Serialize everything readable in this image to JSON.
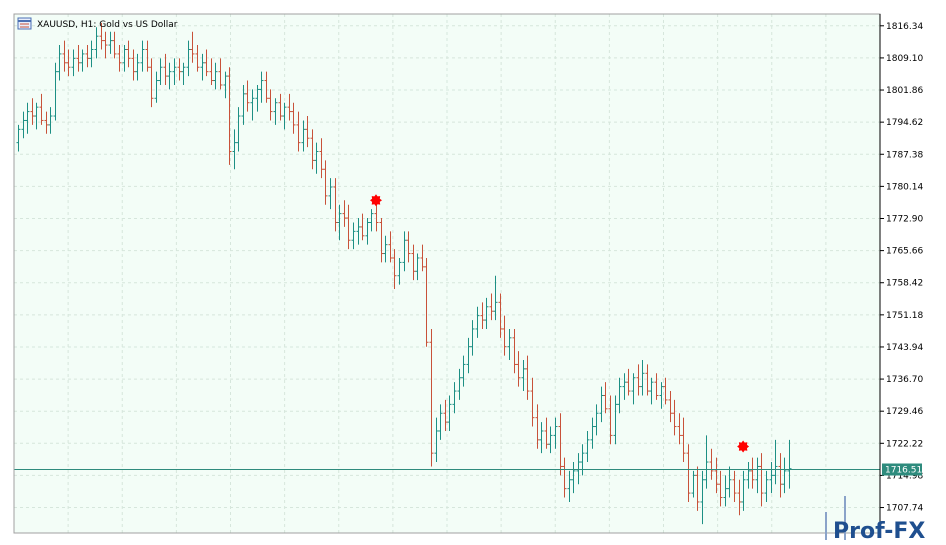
{
  "window": {
    "symbol_title": "XAUUSD, H1:  Gold vs US Dollar"
  },
  "chart_data": {
    "type": "ohlc",
    "title": "XAUUSD, H1:  Gold vs US Dollar",
    "ylim": [
      1702.0,
      1819.0
    ],
    "y_ticks": [
      "1816.34",
      "1809.10",
      "1801.86",
      "1794.62",
      "1787.38",
      "1780.14",
      "1772.90",
      "1765.66",
      "1758.42",
      "1751.18",
      "1743.94",
      "1736.70",
      "1729.46",
      "1722.22",
      "1714.98",
      "1707.74"
    ],
    "y_tick_values": [
      1816.34,
      1809.1,
      1801.86,
      1794.62,
      1787.38,
      1780.14,
      1772.9,
      1765.66,
      1758.42,
      1751.18,
      1743.94,
      1736.7,
      1729.46,
      1722.22,
      1714.98,
      1707.74
    ],
    "grid": true,
    "current_price": {
      "value": 1716.51,
      "label": "1716.51"
    },
    "markers": [
      {
        "bar_index": 78,
        "price": 1777.0
      },
      {
        "bar_index": 158,
        "price": 1721.5
      }
    ],
    "bars": [
      [
        1790.0,
        1794.0,
        1788.0,
        1793.0
      ],
      [
        1793.0,
        1797.0,
        1791.0,
        1795.0
      ],
      [
        1795.0,
        1799.0,
        1792.0,
        1797.0
      ],
      [
        1797.0,
        1800.0,
        1794.0,
        1796.0
      ],
      [
        1796.0,
        1799.0,
        1793.0,
        1798.0
      ],
      [
        1798.0,
        1801.0,
        1794.0,
        1795.0
      ],
      [
        1795.0,
        1797.0,
        1792.0,
        1794.0
      ],
      [
        1794.0,
        1798.0,
        1792.0,
        1796.0
      ],
      [
        1796.0,
        1808.0,
        1795.0,
        1806.0
      ],
      [
        1806.0,
        1812.0,
        1804.0,
        1810.0
      ],
      [
        1810.0,
        1813.0,
        1806.0,
        1808.0
      ],
      [
        1808.0,
        1811.0,
        1805.0,
        1807.0
      ],
      [
        1807.0,
        1811.0,
        1805.0,
        1809.0
      ],
      [
        1809.0,
        1812.0,
        1806.0,
        1808.0
      ],
      [
        1808.0,
        1811.0,
        1806.0,
        1810.0
      ],
      [
        1810.0,
        1812.0,
        1807.0,
        1809.0
      ],
      [
        1809.0,
        1813.0,
        1807.0,
        1811.0
      ],
      [
        1811.0,
        1816.0,
        1809.0,
        1814.0
      ],
      [
        1814.0,
        1817.0,
        1811.0,
        1813.0
      ],
      [
        1813.0,
        1815.0,
        1809.0,
        1812.0
      ],
      [
        1812.0,
        1815.0,
        1810.0,
        1813.0
      ],
      [
        1813.0,
        1815.0,
        1809.0,
        1810.0
      ],
      [
        1810.0,
        1812.0,
        1806.0,
        1808.0
      ],
      [
        1808.0,
        1812.0,
        1806.0,
        1811.0
      ],
      [
        1811.0,
        1813.0,
        1807.0,
        1809.0
      ],
      [
        1809.0,
        1811.0,
        1804.0,
        1806.0
      ],
      [
        1806.0,
        1810.0,
        1804.0,
        1808.0
      ],
      [
        1808.0,
        1813.0,
        1806.0,
        1811.0
      ],
      [
        1811.0,
        1813.0,
        1806.0,
        1807.0
      ],
      [
        1807.0,
        1809.0,
        1798.0,
        1800.0
      ],
      [
        1800.0,
        1806.0,
        1799.0,
        1804.0
      ],
      [
        1804.0,
        1809.0,
        1803.0,
        1807.0
      ],
      [
        1807.0,
        1810.0,
        1803.0,
        1805.0
      ],
      [
        1805.0,
        1808.0,
        1802.0,
        1806.0
      ],
      [
        1806.0,
        1809.0,
        1803.0,
        1807.0
      ],
      [
        1807.0,
        1809.0,
        1804.0,
        1806.0
      ],
      [
        1806.0,
        1808.0,
        1803.0,
        1807.0
      ],
      [
        1807.0,
        1813.0,
        1805.0,
        1811.0
      ],
      [
        1811.0,
        1815.0,
        1808.0,
        1810.0
      ],
      [
        1810.0,
        1812.0,
        1806.0,
        1807.0
      ],
      [
        1807.0,
        1810.0,
        1804.0,
        1808.0
      ],
      [
        1808.0,
        1811.0,
        1805.0,
        1806.0
      ],
      [
        1806.0,
        1809.0,
        1803.0,
        1804.0
      ],
      [
        1804.0,
        1808.0,
        1802.0,
        1806.0
      ],
      [
        1806.0,
        1809.0,
        1802.0,
        1803.0
      ],
      [
        1803.0,
        1806.0,
        1800.0,
        1805.0
      ],
      [
        1805.0,
        1807.0,
        1785.0,
        1788.0
      ],
      [
        1788.0,
        1793.0,
        1784.0,
        1790.0
      ],
      [
        1790.0,
        1798.0,
        1788.0,
        1796.0
      ],
      [
        1796.0,
        1803.0,
        1794.0,
        1801.0
      ],
      [
        1801.0,
        1804.0,
        1797.0,
        1799.0
      ],
      [
        1799.0,
        1802.0,
        1795.0,
        1800.0
      ],
      [
        1800.0,
        1803.0,
        1797.0,
        1802.0
      ],
      [
        1802.0,
        1806.0,
        1799.0,
        1804.0
      ],
      [
        1804.0,
        1806.0,
        1799.0,
        1800.0
      ],
      [
        1800.0,
        1802.0,
        1795.0,
        1797.0
      ],
      [
        1797.0,
        1800.0,
        1794.0,
        1799.0
      ],
      [
        1799.0,
        1801.0,
        1795.0,
        1796.0
      ],
      [
        1796.0,
        1799.0,
        1793.0,
        1798.0
      ],
      [
        1798.0,
        1801.0,
        1795.0,
        1797.0
      ],
      [
        1797.0,
        1799.0,
        1792.0,
        1794.0
      ],
      [
        1794.0,
        1797.0,
        1788.0,
        1790.0
      ],
      [
        1790.0,
        1795.0,
        1788.0,
        1793.0
      ],
      [
        1793.0,
        1796.0,
        1789.0,
        1791.0
      ],
      [
        1791.0,
        1793.0,
        1784.0,
        1786.0
      ],
      [
        1786.0,
        1790.0,
        1783.0,
        1788.0
      ],
      [
        1788.0,
        1791.0,
        1782.0,
        1784.0
      ],
      [
        1784.0,
        1786.0,
        1776.0,
        1778.0
      ],
      [
        1778.0,
        1782.0,
        1775.0,
        1780.0
      ],
      [
        1780.0,
        1782.0,
        1770.0,
        1772.0
      ],
      [
        1772.0,
        1776.0,
        1768.0,
        1774.0
      ],
      [
        1774.0,
        1777.0,
        1771.0,
        1773.0
      ],
      [
        1773.0,
        1776.0,
        1766.0,
        1768.0
      ],
      [
        1768.0,
        1772.0,
        1766.0,
        1770.0
      ],
      [
        1770.0,
        1773.0,
        1767.0,
        1771.0
      ],
      [
        1771.0,
        1774.0,
        1768.0,
        1769.0
      ],
      [
        1769.0,
        1773.0,
        1767.0,
        1772.0
      ],
      [
        1772.0,
        1775.0,
        1770.0,
        1774.0
      ],
      [
        1774.0,
        1776.0,
        1770.0,
        1772.0
      ],
      [
        1772.0,
        1773.0,
        1763.0,
        1765.0
      ],
      [
        1765.0,
        1769.0,
        1763.0,
        1767.0
      ],
      [
        1767.0,
        1770.0,
        1763.0,
        1764.0
      ],
      [
        1764.0,
        1766.0,
        1757.0,
        1760.0
      ],
      [
        1760.0,
        1764.0,
        1758.0,
        1763.0
      ],
      [
        1763.0,
        1770.0,
        1761.0,
        1768.0
      ],
      [
        1768.0,
        1770.0,
        1763.0,
        1765.0
      ],
      [
        1765.0,
        1767.0,
        1759.0,
        1761.0
      ],
      [
        1761.0,
        1765.0,
        1759.0,
        1764.0
      ],
      [
        1764.0,
        1767.0,
        1761.0,
        1762.0
      ],
      [
        1762.0,
        1764.0,
        1744.0,
        1745.0
      ],
      [
        1745.0,
        1748.0,
        1717.0,
        1720.0
      ],
      [
        1720.0,
        1728.0,
        1718.0,
        1725.0
      ],
      [
        1725.0,
        1731.0,
        1723.0,
        1729.0
      ],
      [
        1729.0,
        1732.0,
        1725.0,
        1727.0
      ],
      [
        1727.0,
        1733.0,
        1725.0,
        1731.0
      ],
      [
        1731.0,
        1736.0,
        1729.0,
        1734.0
      ],
      [
        1734.0,
        1739.0,
        1732.0,
        1737.0
      ],
      [
        1737.0,
        1742.0,
        1735.0,
        1740.0
      ],
      [
        1740.0,
        1746.0,
        1738.0,
        1744.0
      ],
      [
        1744.0,
        1750.0,
        1742.0,
        1748.0
      ],
      [
        1748.0,
        1753.0,
        1746.0,
        1751.0
      ],
      [
        1751.0,
        1754.0,
        1748.0,
        1750.0
      ],
      [
        1750.0,
        1755.0,
        1748.0,
        1753.0
      ],
      [
        1753.0,
        1756.0,
        1750.0,
        1752.0
      ],
      [
        1752.0,
        1760.0,
        1750.0,
        1754.0
      ],
      [
        1754.0,
        1756.0,
        1746.0,
        1748.0
      ],
      [
        1748.0,
        1751.0,
        1742.0,
        1744.0
      ],
      [
        1744.0,
        1748.0,
        1741.0,
        1746.0
      ],
      [
        1746.0,
        1748.0,
        1738.0,
        1740.0
      ],
      [
        1740.0,
        1743.0,
        1735.0,
        1737.0
      ],
      [
        1737.0,
        1741.0,
        1734.0,
        1739.0
      ],
      [
        1739.0,
        1742.0,
        1732.0,
        1734.0
      ],
      [
        1734.0,
        1737.0,
        1726.0,
        1728.0
      ],
      [
        1728.0,
        1731.0,
        1721.0,
        1723.0
      ],
      [
        1723.0,
        1727.0,
        1720.0,
        1725.0
      ],
      [
        1725.0,
        1728.0,
        1721.0,
        1722.0
      ],
      [
        1722.0,
        1726.0,
        1720.0,
        1724.0
      ],
      [
        1724.0,
        1728.0,
        1721.0,
        1726.0
      ],
      [
        1726.0,
        1729.0,
        1715.0,
        1717.0
      ],
      [
        1717.0,
        1719.0,
        1710.0,
        1712.0
      ],
      [
        1712.0,
        1716.0,
        1709.0,
        1714.0
      ],
      [
        1714.0,
        1718.0,
        1711.0,
        1716.0
      ],
      [
        1716.0,
        1720.0,
        1713.0,
        1718.0
      ],
      [
        1718.0,
        1722.0,
        1715.0,
        1720.0
      ],
      [
        1720.0,
        1725.0,
        1718.0,
        1723.0
      ],
      [
        1723.0,
        1728.0,
        1721.0,
        1726.0
      ],
      [
        1726.0,
        1731.0,
        1724.0,
        1729.0
      ],
      [
        1729.0,
        1735.0,
        1727.0,
        1733.0
      ],
      [
        1733.0,
        1736.0,
        1729.0,
        1730.0
      ],
      [
        1730.0,
        1733.0,
        1722.0,
        1724.0
      ],
      [
        1724.0,
        1733.0,
        1722.0,
        1731.0
      ],
      [
        1731.0,
        1737.0,
        1729.0,
        1735.0
      ],
      [
        1735.0,
        1738.0,
        1732.0,
        1736.0
      ],
      [
        1736.0,
        1739.0,
        1733.0,
        1734.0
      ],
      [
        1734.0,
        1738.0,
        1731.0,
        1737.0
      ],
      [
        1737.0,
        1740.0,
        1733.0,
        1735.0
      ],
      [
        1735.0,
        1741.0,
        1733.0,
        1738.0
      ],
      [
        1738.0,
        1740.0,
        1733.0,
        1734.0
      ],
      [
        1734.0,
        1737.0,
        1731.0,
        1736.0
      ],
      [
        1736.0,
        1738.0,
        1732.0,
        1733.0
      ],
      [
        1733.0,
        1736.0,
        1730.0,
        1735.0
      ],
      [
        1735.0,
        1737.0,
        1731.0,
        1732.0
      ],
      [
        1732.0,
        1734.0,
        1727.0,
        1729.0
      ],
      [
        1729.0,
        1732.0,
        1724.0,
        1726.0
      ],
      [
        1726.0,
        1729.0,
        1722.0,
        1724.0
      ],
      [
        1724.0,
        1728.0,
        1718.0,
        1720.0
      ],
      [
        1720.0,
        1722.0,
        1709.0,
        1711.0
      ],
      [
        1711.0,
        1716.0,
        1710.0,
        1715.0
      ],
      [
        1715.0,
        1717.0,
        1707.0,
        1709.0
      ],
      [
        1709.0,
        1716.0,
        1704.0,
        1714.0
      ],
      [
        1714.0,
        1724.0,
        1712.0,
        1718.0
      ],
      [
        1718.0,
        1721.0,
        1714.0,
        1716.0
      ],
      [
        1716.0,
        1719.0,
        1711.0,
        1713.0
      ],
      [
        1713.0,
        1716.0,
        1708.0,
        1710.0
      ],
      [
        1710.0,
        1715.0,
        1708.0,
        1712.0
      ],
      [
        1712.0,
        1717.0,
        1710.0,
        1714.0
      ],
      [
        1714.0,
        1716.0,
        1709.0,
        1711.0
      ],
      [
        1711.0,
        1714.0,
        1706.0,
        1709.0
      ],
      [
        1709.0,
        1716.0,
        1707.0,
        1714.0
      ],
      [
        1714.0,
        1718.0,
        1712.0,
        1716.0
      ],
      [
        1716.0,
        1719.0,
        1712.0,
        1714.0
      ],
      [
        1714.0,
        1719.0,
        1711.0,
        1717.0
      ],
      [
        1717.0,
        1720.0,
        1708.0,
        1711.0
      ],
      [
        1711.0,
        1716.0,
        1709.0,
        1714.0
      ],
      [
        1714.0,
        1718.0,
        1711.0,
        1715.0
      ],
      [
        1715.0,
        1723.0,
        1713.0,
        1717.0
      ],
      [
        1717.0,
        1720.0,
        1710.0,
        1713.0
      ],
      [
        1713.0,
        1719.0,
        1711.0,
        1716.0
      ],
      [
        1716.0,
        1723.0,
        1712.0,
        1716.5
      ]
    ]
  },
  "branding": {
    "logo_text": "Prof-FX"
  },
  "colors": {
    "background": "#f3fdf7",
    "grid": "#d6e6dc",
    "bull": "#1d8f84",
    "bear": "#c8523a",
    "price_line": "#2e8b7d",
    "price_tag": "#2e8b7d",
    "marker": "#ff0000",
    "frame": "#a0a0a0",
    "axis_bg": "#ffffff",
    "logo_blue": "#1f4f8f"
  }
}
